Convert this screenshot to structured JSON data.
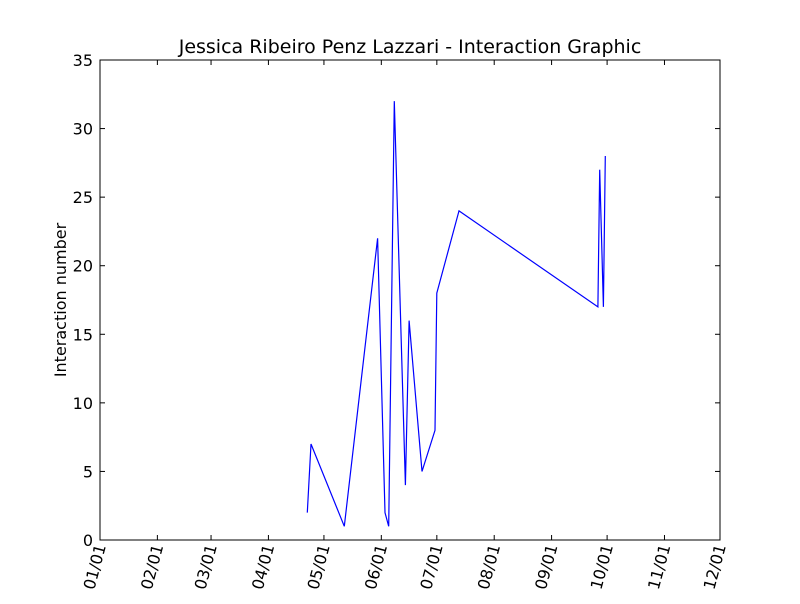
{
  "chart_data": {
    "type": "line",
    "title": "Jessica Ribeiro Penz Lazzari - Interaction Graphic",
    "xlabel": "",
    "ylabel": "Interaction number",
    "x_tick_labels": [
      "01/01",
      "02/01",
      "03/01",
      "04/01",
      "05/01",
      "06/01",
      "07/01",
      "08/01",
      "09/01",
      "10/01",
      "11/01",
      "12/01"
    ],
    "x_tick_dates": [
      "01/01",
      "02/01",
      "03/01",
      "04/01",
      "05/01",
      "06/01",
      "07/01",
      "08/01",
      "09/01",
      "10/01",
      "11/01",
      "12/01"
    ],
    "xlim": [
      "01/01",
      "12/01"
    ],
    "y_ticks": [
      0,
      5,
      10,
      15,
      20,
      25,
      30,
      35
    ],
    "y_tick_labels": [
      "0",
      "5",
      "10",
      "15",
      "20",
      "25",
      "30",
      "35"
    ],
    "ylim": [
      0,
      35
    ],
    "grid": false,
    "series": [
      {
        "color": "#0000ff",
        "x": [
          "04/22",
          "04/24",
          "05/12",
          "05/30",
          "06/03",
          "06/05",
          "06/08",
          "06/14",
          "06/16",
          "06/23",
          "06/30",
          "07/01",
          "07/13",
          "09/26",
          "09/27",
          "09/29",
          "09/30"
        ],
        "y": [
          2,
          7,
          1,
          22,
          2,
          1,
          32,
          4,
          16,
          5,
          8,
          18,
          24,
          17,
          27,
          17,
          28
        ]
      }
    ]
  }
}
